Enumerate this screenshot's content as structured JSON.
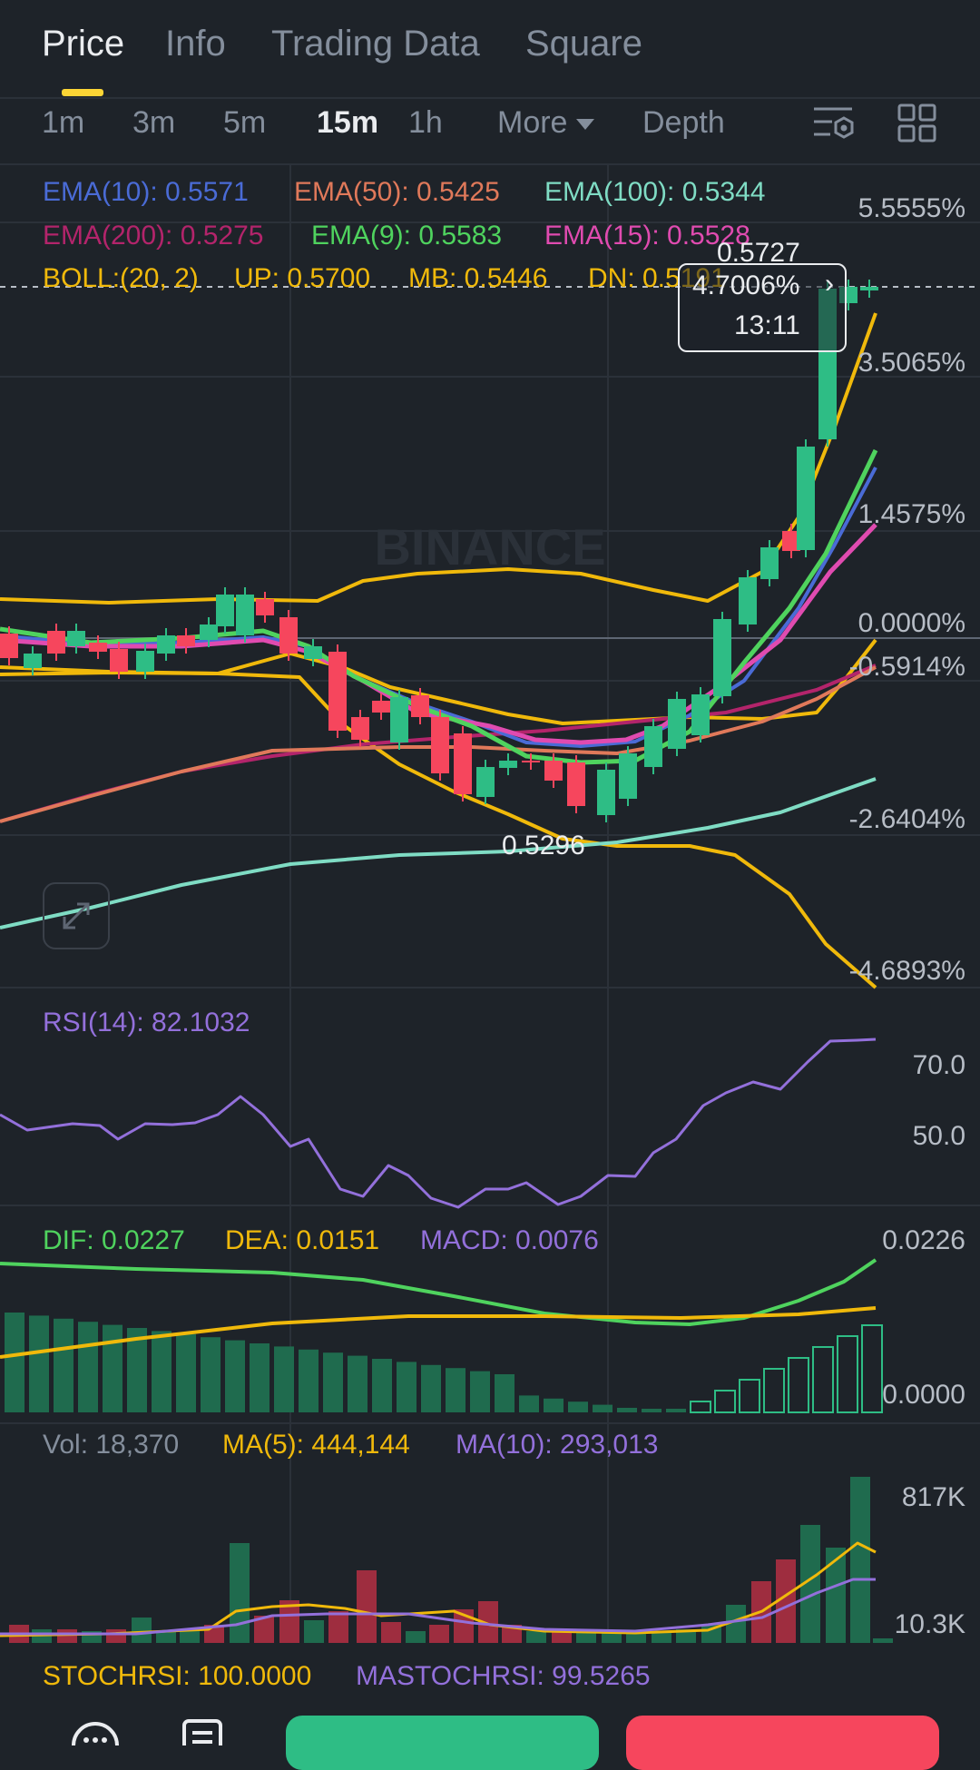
{
  "tabs": [
    "Price",
    "Info",
    "Trading Data",
    "Square"
  ],
  "timeframes": [
    "1m",
    "3m",
    "5m",
    "15m",
    "1h",
    "More",
    "Depth"
  ],
  "indicators": {
    "ema10": "EMA(10): 0.5571",
    "ema50": "EMA(50): 0.5425",
    "ema100": "EMA(100): 0.5344",
    "ema200": "EMA(200): 0.5275",
    "ema9": "EMA(9): 0.5583",
    "ema15": "EMA(15): 0.5528",
    "boll": "BOLL:(20, 2)",
    "boll_up": "UP: 0.5700",
    "boll_mb": "MB: 0.5446",
    "boll_dn": "DN: 0.5191"
  },
  "price_axis": [
    "5.5555%",
    "3.5065%",
    "1.4575%",
    "0.0000%",
    "-0.5914%",
    "-2.6404%",
    "-4.6893%"
  ],
  "high_marker": "0.5727",
  "low_marker": "0.5296",
  "tooltip": {
    "pct": "4.7006%",
    "time": "13:11"
  },
  "watermark": "BINANCE",
  "rsi": {
    "label": "RSI(14): 82.1032",
    "axis": [
      "70.0",
      "50.0"
    ]
  },
  "macd": {
    "dif": "DIF: 0.0227",
    "dea": "DEA: 0.0151",
    "macd": "MACD: 0.0076",
    "axis": [
      "0.0226",
      "0.0000"
    ]
  },
  "vol": {
    "vol": "Vol: 18,370",
    "ma5": "MA(5): 444,144",
    "ma10": "MA(10): 293,013",
    "axis": [
      "817K",
      "10.3K"
    ]
  },
  "stoch": {
    "k": "STOCHRSI: 100.0000",
    "d": "MASTOCHRSI: 99.5265"
  },
  "colors": {
    "up": "#2ebd85",
    "down": "#f6465d",
    "ema10": "#4a6bd6",
    "ema50": "#e0795a",
    "ema100": "#7fdcc4",
    "ema200": "#b3246b",
    "ema9": "#4fd35e",
    "ema15": "#e04bb0",
    "boll": "#f0b90b",
    "rsi": "#9370db",
    "accent": "#fcd535"
  }
}
